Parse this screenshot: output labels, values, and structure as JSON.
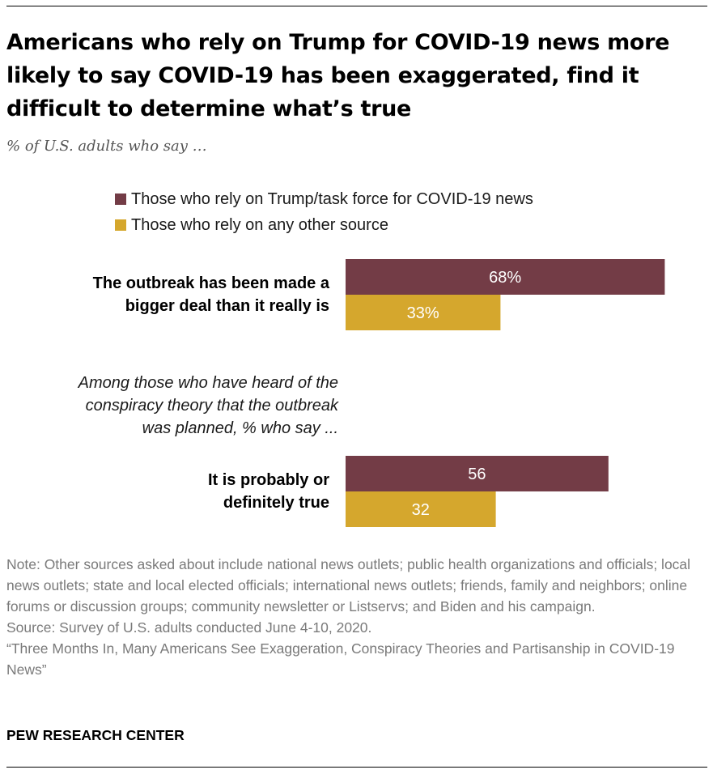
{
  "title": "Americans who rely on Trump for COVID-19 news more likely to say COVID-19 has been exaggerated, find it difficult to determine what’s true",
  "subtitle": "% of U.S. adults who say …",
  "legend": [
    {
      "label": "Those who rely on Trump/task force for COVID-19 news",
      "color": "#733c46"
    },
    {
      "label": "Those who rely on any other source",
      "color": "#d5a72d"
    }
  ],
  "chart_data": {
    "type": "bar",
    "orientation": "horizontal",
    "categories": [
      {
        "lines": [
          "The outbreak has been made a",
          "bigger deal than it really is"
        ]
      },
      {
        "lines": [
          "It is probably or",
          "definitely true"
        ]
      }
    ],
    "series": [
      {
        "name": "Those who rely on Trump/task force for COVID-19 news",
        "values": [
          68,
          56
        ],
        "labels": [
          "68%",
          "56"
        ],
        "color": "#733c46"
      },
      {
        "name": "Those who rely on any other source",
        "values": [
          33,
          32
        ],
        "labels": [
          "33%",
          "32"
        ],
        "color": "#d5a72d"
      }
    ],
    "annotation": {
      "lines": [
        "Among those who have heard of the",
        "conspiracy theory that the outbreak",
        "was planned, % who say ..."
      ]
    },
    "xlim": [
      0,
      100
    ],
    "grid": false,
    "legend_position": "top"
  },
  "notes": [
    "Note: Other sources asked about include national news outlets; public health organizations and officials; local news outlets; state and local elected officials; international news outlets; friends, family and neighbors; online forums or discussion groups; community newsletter or Listservs; and Biden and his campaign.",
    "Source: Survey of U.S. adults conducted June 4-10, 2020.",
    "“Three Months In, Many Americans See Exaggeration, Conspiracy Theories and Partisanship in COVID-19 News”"
  ],
  "brand": "PEW RESEARCH CENTER"
}
